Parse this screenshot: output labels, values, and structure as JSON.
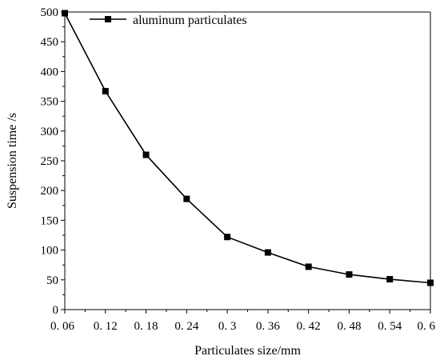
{
  "chart_data": {
    "type": "line",
    "title": "",
    "xlabel": "Particulates size/mm",
    "ylabel": "Suspension time /s",
    "x": [
      0.06,
      0.12,
      0.18,
      0.24,
      0.3,
      0.36,
      0.42,
      0.48,
      0.54,
      0.6
    ],
    "x_tick_labels": [
      "0. 06",
      "0. 12",
      "0. 18",
      "0. 24",
      "0. 3",
      "0. 36",
      "0. 42",
      "0. 48",
      "0. 54",
      "0. 6"
    ],
    "xlim": [
      0.06,
      0.6
    ],
    "ylim": [
      0,
      500
    ],
    "y_ticks": [
      0,
      50,
      100,
      150,
      200,
      250,
      300,
      350,
      400,
      450,
      500
    ],
    "series": [
      {
        "name": "aluminum particulates",
        "marker": "square",
        "color": "#000000",
        "values": [
          498,
          367,
          260,
          186,
          122,
          96,
          72,
          59,
          51,
          45
        ]
      }
    ],
    "legend": "top-left",
    "grid": false
  }
}
